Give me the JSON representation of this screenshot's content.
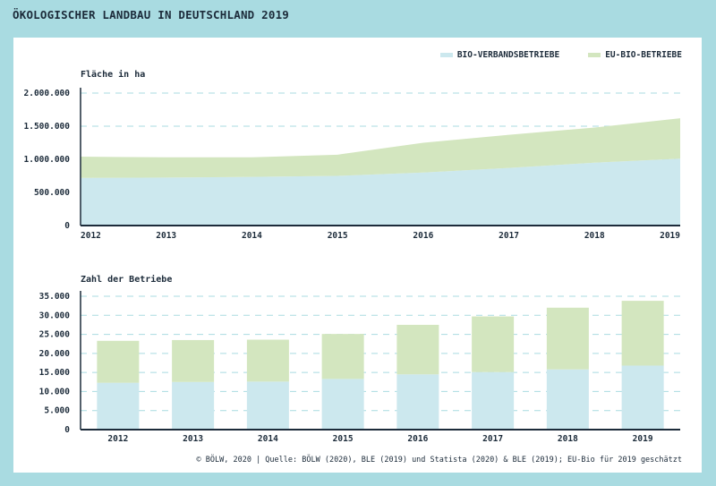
{
  "title": "ÖKOLOGISCHER LANDBAU IN DEUTSCHLAND 2019",
  "legend": [
    {
      "label": "BIO-VERBANDSBETRIEBE",
      "color": "#cce8ee"
    },
    {
      "label": "EU-BIO-BETRIEBE",
      "color": "#d3e6bf"
    }
  ],
  "source": "© BÖLW, 2020 | Quelle: BÖLW (2020), BLE (2019) und Statista (2020) & BLE (2019); EU-Bio für 2019 geschätzt",
  "chart_data": [
    {
      "type": "area",
      "stacked": true,
      "title": "Fläche in ha",
      "categories": [
        "2012",
        "2013",
        "2014",
        "2015",
        "2016",
        "2017",
        "2018",
        "2019"
      ],
      "series": [
        {
          "name": "BIO-VERBANDSBETRIEBE",
          "color": "#cce8ee",
          "values": [
            720000,
            725000,
            735000,
            750000,
            800000,
            870000,
            950000,
            1010000
          ]
        },
        {
          "name": "EU-BIO-BETRIEBE",
          "color": "#d3e6bf",
          "values": [
            320000,
            305000,
            295000,
            320000,
            450000,
            500000,
            530000,
            610000
          ]
        }
      ],
      "ylim": [
        0,
        2000000
      ],
      "yticks": [
        "0",
        "500.000",
        "1.000.000",
        "1.500.000",
        "2.000.000"
      ],
      "ytick_values": [
        0,
        500000,
        1000000,
        1500000,
        2000000
      ],
      "grid": true
    },
    {
      "type": "bar",
      "stacked": true,
      "title": "Zahl der Betriebe",
      "categories": [
        "2012",
        "2013",
        "2014",
        "2015",
        "2016",
        "2017",
        "2018",
        "2019"
      ],
      "series": [
        {
          "name": "BIO-VERBANDSBETRIEBE",
          "color": "#cce8ee",
          "values": [
            12300,
            12500,
            12600,
            13300,
            14500,
            15100,
            15800,
            16800
          ]
        },
        {
          "name": "EU-BIO-BETRIEBE",
          "color": "#d3e6bf",
          "values": [
            11000,
            11000,
            11000,
            11800,
            13000,
            14600,
            16200,
            17000
          ]
        }
      ],
      "ylim": [
        0,
        35000
      ],
      "yticks": [
        "0",
        "5.000",
        "10.000",
        "15.000",
        "20.000",
        "25.000",
        "30.000",
        "35.000"
      ],
      "ytick_values": [
        0,
        5000,
        10000,
        15000,
        20000,
        25000,
        30000,
        35000
      ],
      "grid": true
    }
  ]
}
